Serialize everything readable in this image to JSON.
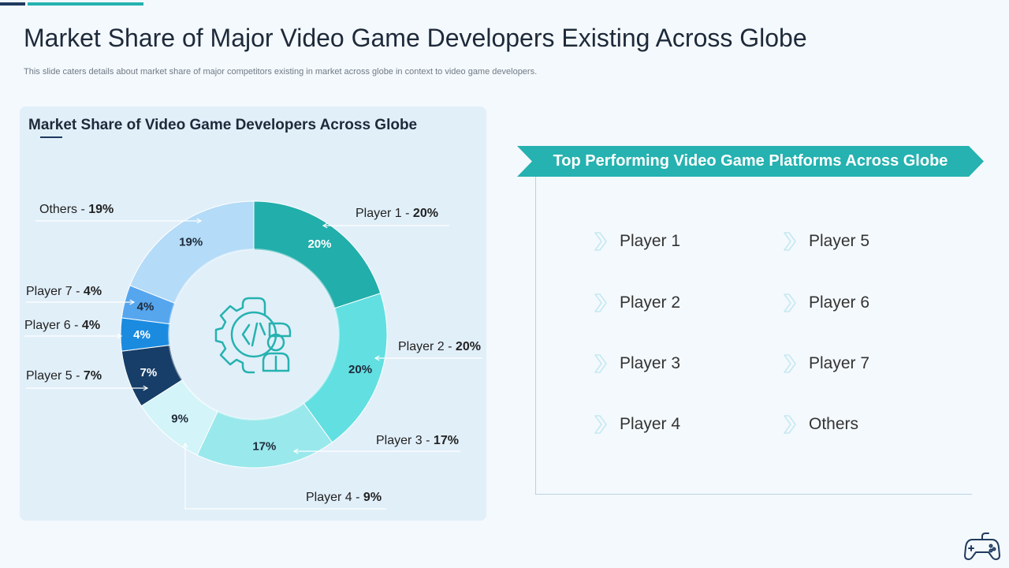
{
  "header": {
    "title": "Market Share of Major Video Game Developers Existing Across Globe",
    "subtitle": "This slide caters details about market share of major competitors existing in market across globe in context to video game developers."
  },
  "chart_data": {
    "type": "pie",
    "title": "Market Share of Video Game Developers Across Globe",
    "categories": [
      "Player 1",
      "Player 2",
      "Player 3",
      "Player 4",
      "Player 5",
      "Player 6",
      "Player 7",
      "Others"
    ],
    "values": [
      20,
      20,
      17,
      9,
      7,
      4,
      4,
      19
    ],
    "inner_labels": [
      "20%",
      "20%",
      "17%",
      "9%",
      "7%",
      "4%",
      "4%",
      "19%"
    ],
    "colors": [
      "#22aeab",
      "#62dfe1",
      "#99e8ec",
      "#d3f4f8",
      "#163e68",
      "#1b8be0",
      "#56a6ee",
      "#b4dbf7"
    ],
    "donut": true,
    "center_icon": "developer-gear-icon",
    "legend_labels": [
      {
        "name": "Player 1 - ",
        "pct": "20%"
      },
      {
        "name": "Player 2 - ",
        "pct": "20%"
      },
      {
        "name": "Player 3 - ",
        "pct": "17%"
      },
      {
        "name": "Player 4 - ",
        "pct": "9%"
      },
      {
        "name": "Player 5 - ",
        "pct": "7%"
      },
      {
        "name": "Player 6 - ",
        "pct": "4%"
      },
      {
        "name": "Player 7 - ",
        "pct": "4%"
      },
      {
        "name": "Others - ",
        "pct": "19%"
      }
    ]
  },
  "platforms": {
    "title": "Top Performing Video Game Platforms Across Globe",
    "items": [
      "Player 1",
      "Player 2",
      "Player 3",
      "Player 4",
      "Player 5",
      "Player 6",
      "Player 7",
      "Others"
    ]
  },
  "icons": {
    "bullet": "chevron-right-icon",
    "footer": "gamepad-icon"
  },
  "colors": {
    "accent": "#25b2b0",
    "dark": "#1f3a5f",
    "panel": "#e1eff9"
  }
}
